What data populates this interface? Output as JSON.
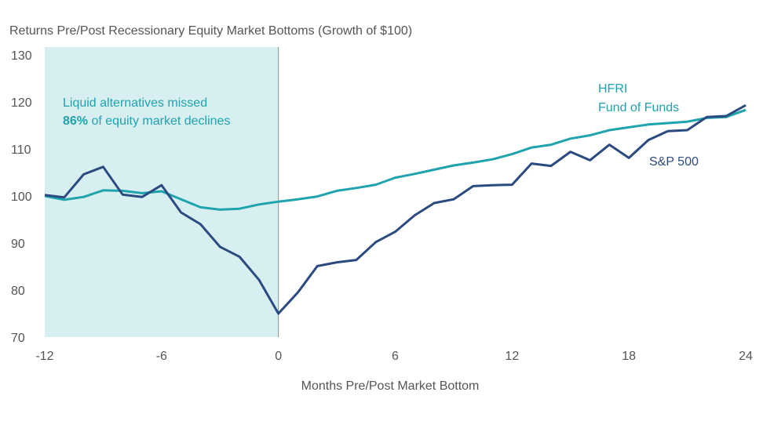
{
  "chart_data": {
    "type": "line",
    "title": "Returns Pre/Post Recessionary Equity Market Bottoms (Growth of $100)",
    "xlabel": "Months Pre/Post Market Bottom",
    "ylabel": "",
    "xlim": [
      -12,
      24
    ],
    "ylim": [
      70,
      130
    ],
    "xticks": [
      "-12",
      "-6",
      "0",
      "6",
      "12",
      "18",
      "24"
    ],
    "xtick_values": [
      -12,
      -6,
      0,
      6,
      12,
      18,
      24
    ],
    "yticks": [
      "70",
      "80",
      "90",
      "100",
      "110",
      "120",
      "130"
    ],
    "ytick_values": [
      70,
      80,
      90,
      100,
      110,
      120,
      130
    ],
    "x": [
      -12,
      -11,
      -10,
      -9,
      -8,
      -7,
      -6,
      -5,
      -4,
      -3,
      -2,
      -1,
      0,
      1,
      2,
      3,
      4,
      5,
      6,
      7,
      8,
      9,
      10,
      11,
      12,
      13,
      14,
      15,
      16,
      17,
      18,
      19,
      20,
      21,
      22,
      23,
      24
    ],
    "series": [
      {
        "name": "S&P 500",
        "color": "#2b4a80",
        "values": [
          100.2,
          99.7,
          104.6,
          106.2,
          100.3,
          99.8,
          102.3,
          96.5,
          94.0,
          89.2,
          87.1,
          82.2,
          75.0,
          79.5,
          85.1,
          85.9,
          86.4,
          90.2,
          92.4,
          95.9,
          98.5,
          99.3,
          102.1,
          102.3,
          102.4,
          106.9,
          106.4,
          109.4,
          107.6,
          110.9,
          108.1,
          111.9,
          113.8,
          114.0,
          116.8,
          117.0,
          119.3
        ]
      },
      {
        "name": "HFRI Fund of Funds",
        "color": "#1fa3ad",
        "values": [
          100.0,
          99.2,
          99.8,
          101.2,
          101.1,
          100.6,
          101.0,
          99.3,
          97.6,
          97.1,
          97.3,
          98.2,
          98.8,
          99.3,
          99.9,
          101.1,
          101.7,
          102.4,
          103.9,
          104.7,
          105.6,
          106.5,
          107.1,
          107.8,
          108.9,
          110.3,
          110.9,
          112.2,
          112.9,
          114.0,
          114.6,
          115.2,
          115.5,
          115.8,
          116.6,
          116.8,
          118.3
        ]
      }
    ],
    "legend_labels": {
      "hfri_line1": "HFRI",
      "hfri_line2": "Fund of Funds",
      "sp": "S&P 500"
    },
    "shaded_region": {
      "from": -12,
      "to": 0,
      "color": "#d8eff2"
    },
    "annotation": {
      "line1": "Liquid alternatives missed",
      "bold": "86%",
      "line2_rest": " of equity market declines"
    }
  }
}
